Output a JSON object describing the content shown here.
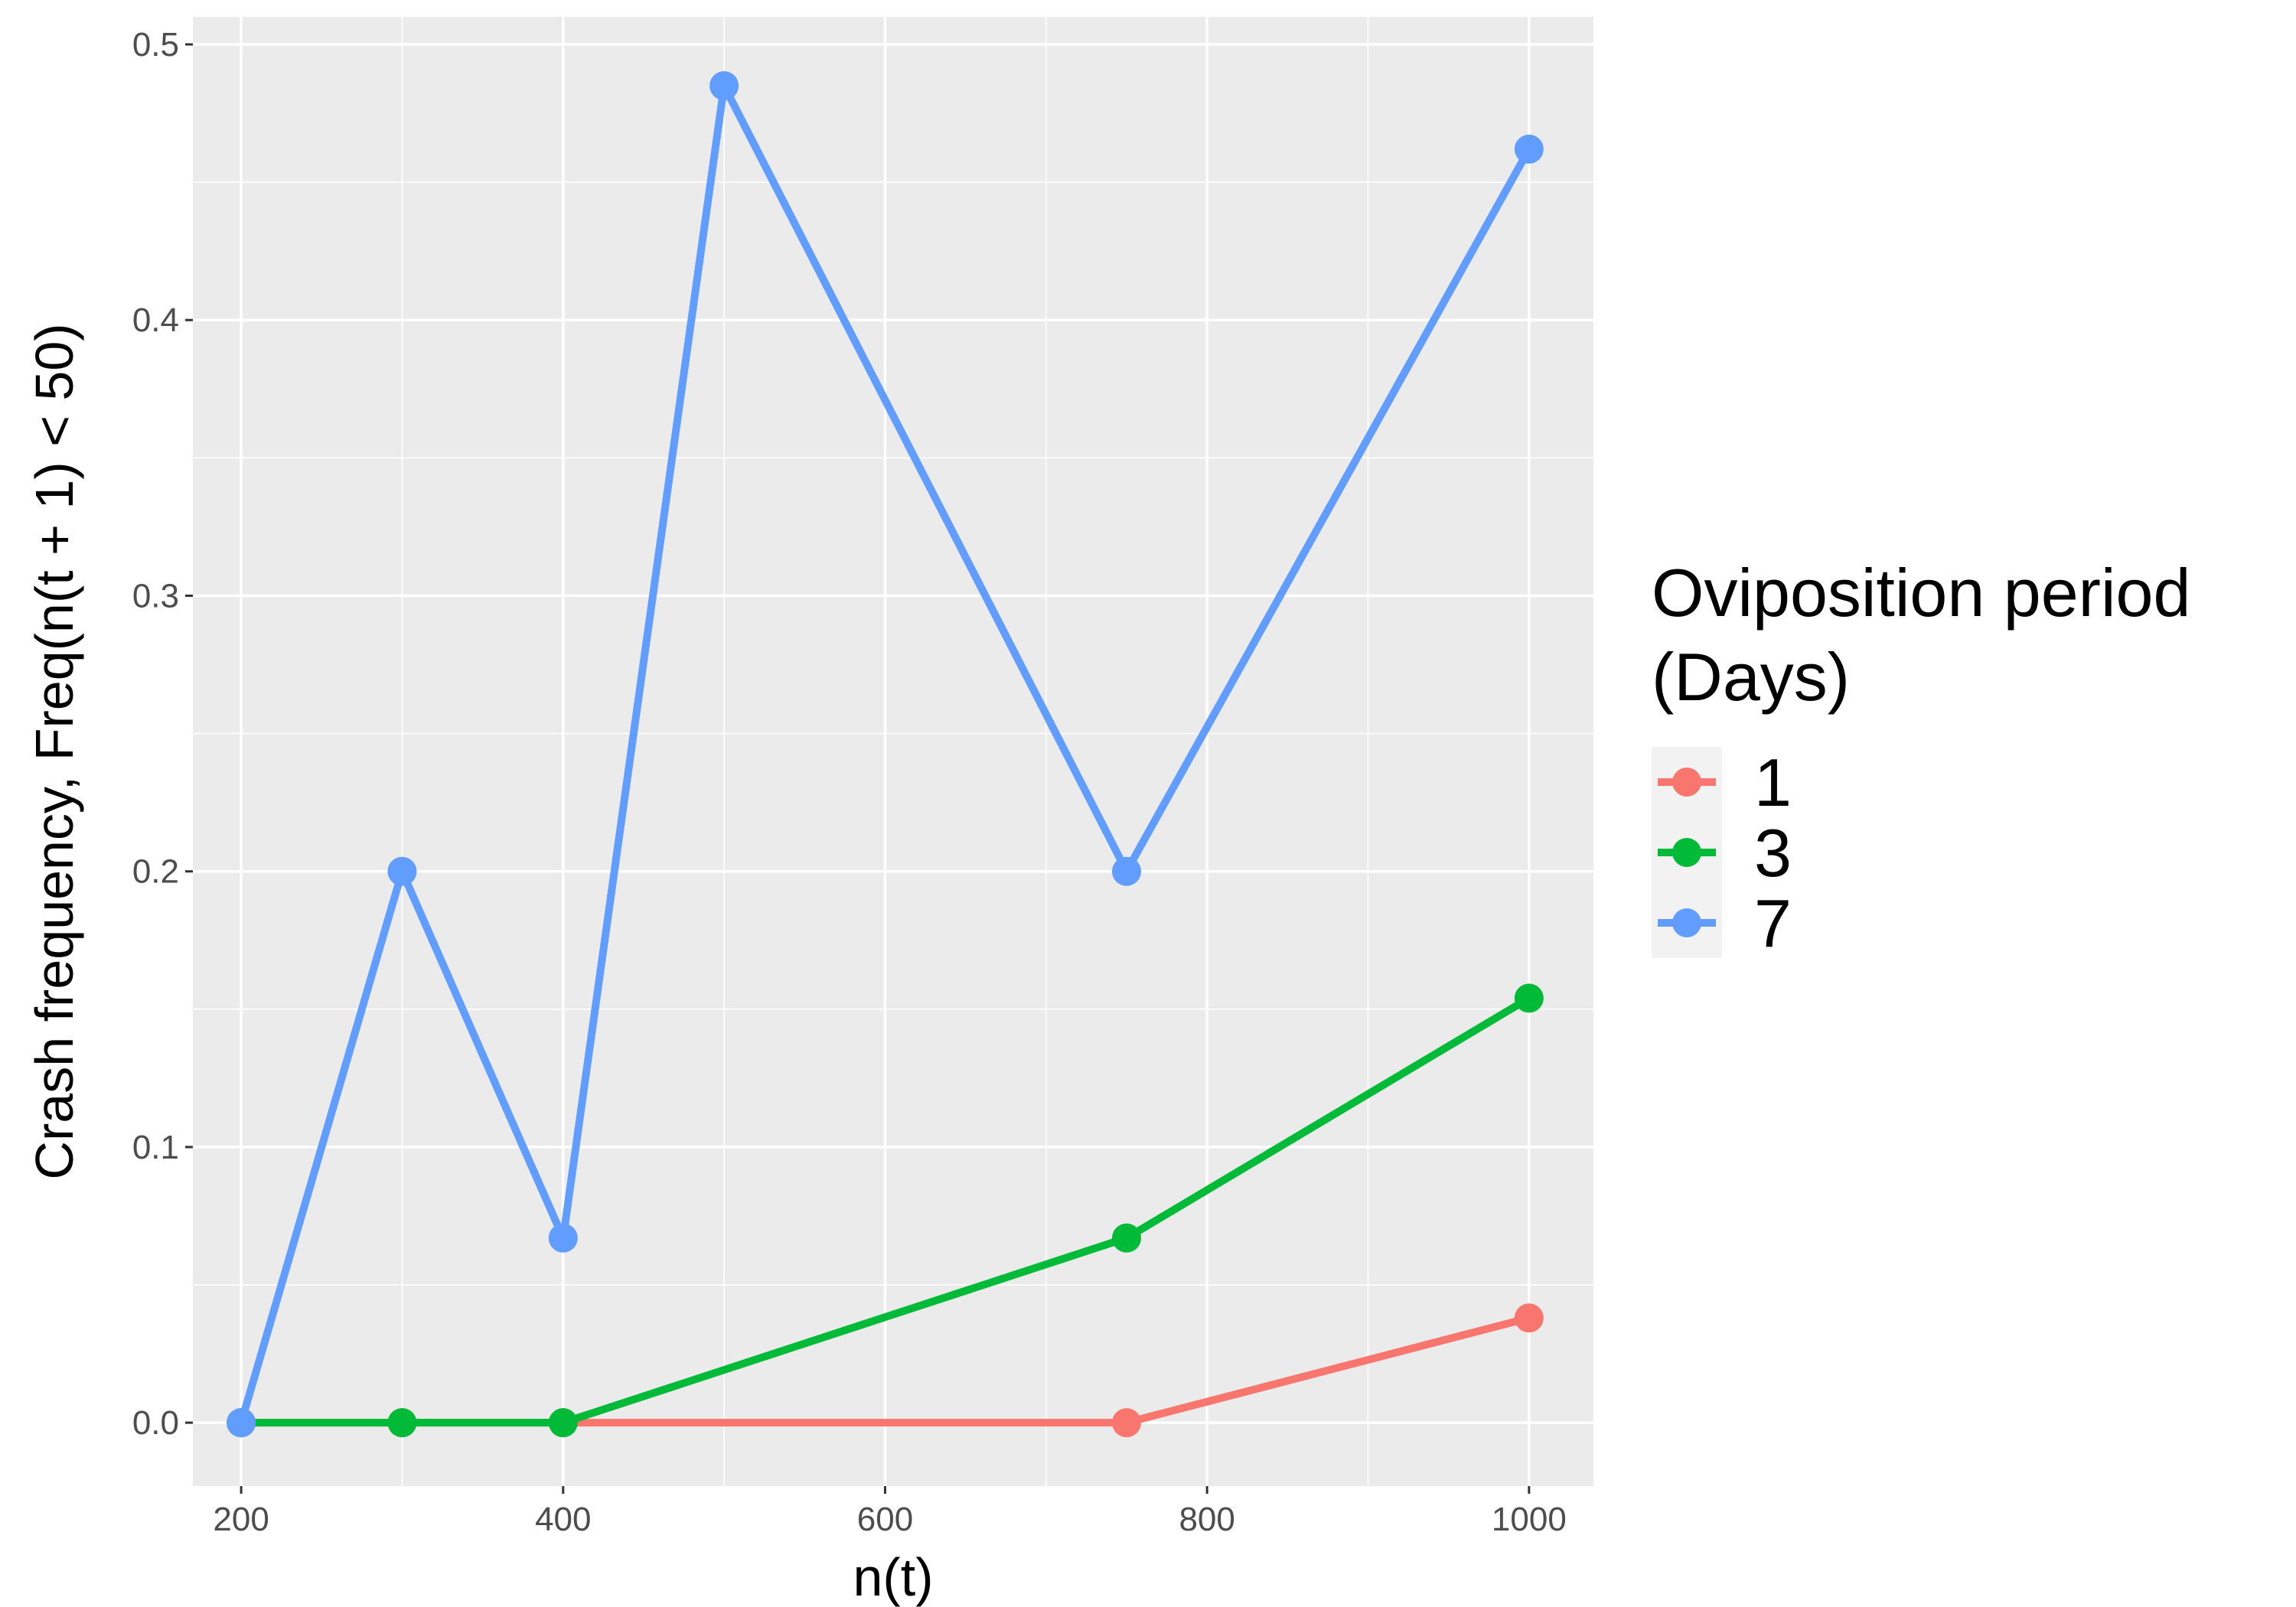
{
  "chart_data": {
    "type": "line",
    "xlabel": "n(t)",
    "ylabel": "Crash frequency, Freq(n(t + 1) < 50)",
    "xlim": [
      170,
      1040
    ],
    "ylim": [
      -0.023,
      0.51
    ],
    "x_ticks": [
      "200",
      "400",
      "600",
      "800",
      "1000"
    ],
    "y_ticks": [
      "0.0",
      "0.1",
      "0.2",
      "0.3",
      "0.4",
      "0.5"
    ],
    "x_tick_values": [
      200,
      400,
      600,
      800,
      1000
    ],
    "y_tick_values": [
      0,
      0.1,
      0.2,
      0.3,
      0.4,
      0.5
    ],
    "grid": true,
    "legend": {
      "position": "right",
      "title_line1": "Oviposition period",
      "title_line2": "(Days)"
    },
    "series": [
      {
        "name": "1",
        "color": "#F8766D",
        "points": [
          [
            200,
            0
          ],
          [
            300,
            0
          ],
          [
            400,
            0
          ],
          [
            750,
            0
          ],
          [
            1000,
            0.038
          ]
        ]
      },
      {
        "name": "3",
        "color": "#00BA38",
        "points": [
          [
            200,
            0
          ],
          [
            300,
            0
          ],
          [
            400,
            0
          ],
          [
            750,
            0.067
          ],
          [
            1000,
            0.154
          ]
        ]
      },
      {
        "name": "7",
        "color": "#619CFF",
        "points": [
          [
            200,
            0
          ],
          [
            300,
            0.2
          ],
          [
            400,
            0.067
          ],
          [
            500,
            0.485
          ],
          [
            750,
            0.2
          ],
          [
            1000,
            0.462
          ]
        ]
      }
    ]
  }
}
